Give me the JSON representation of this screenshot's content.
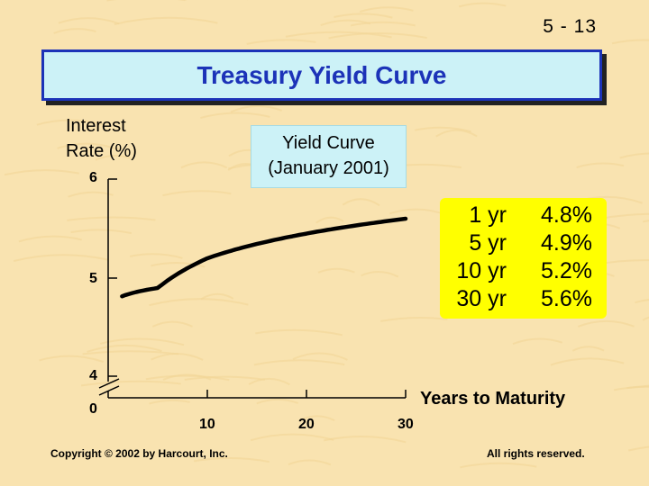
{
  "page_number": "5 - 13",
  "title": "Treasury Yield Curve",
  "legend_box": {
    "line1": "Yield Curve",
    "line2": "(January 2001)"
  },
  "rate_table": [
    {
      "maturity": "1 yr",
      "rate": "4.8%"
    },
    {
      "maturity": "5 yr",
      "rate": "4.9%"
    },
    {
      "maturity": "10 yr",
      "rate": "5.2%"
    },
    {
      "maturity": "30 yr",
      "rate": "5.6%"
    }
  ],
  "footer": {
    "copyright": "Copyright © 2002 by Harcourt, Inc.",
    "rights": "All rights reserved."
  },
  "colors": {
    "background": "#f9e3b0",
    "title_banner": "#ccf2f7",
    "title_text": "#1c33b8",
    "table_highlight": "#ffff00",
    "curve": "#000000"
  },
  "chart_data": {
    "type": "line",
    "title": "Treasury Yield Curve",
    "xlabel": "Years to Maturity",
    "ylabel_line1": "Interest",
    "ylabel_line2": "Rate (%)",
    "x_ticks": [
      "0",
      "10",
      "20",
      "30"
    ],
    "y_ticks": [
      "4",
      "5",
      "6"
    ],
    "xlim": [
      0,
      30
    ],
    "ylim": [
      4,
      6
    ],
    "y_axis_break": true,
    "grid": false,
    "legend": "Yield Curve (January 2001)",
    "series": [
      {
        "name": "Yield Curve (January 2001)",
        "x": [
          1,
          5,
          10,
          30
        ],
        "y": [
          4.8,
          4.9,
          5.2,
          5.6
        ]
      }
    ]
  }
}
